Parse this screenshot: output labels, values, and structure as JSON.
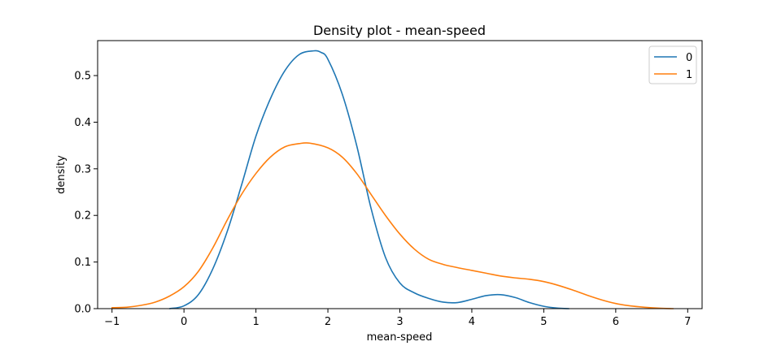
{
  "chart_data": {
    "type": "line",
    "title": "Density plot - mean-speed",
    "xlabel": "mean-speed",
    "ylabel": "density",
    "xlim": [
      -1.2,
      7.2
    ],
    "ylim": [
      0,
      0.575
    ],
    "xticks": [
      -1,
      0,
      1,
      2,
      3,
      4,
      5,
      6,
      7
    ],
    "xtick_labels": [
      "−1",
      "0",
      "1",
      "2",
      "3",
      "4",
      "5",
      "6",
      "7"
    ],
    "yticks": [
      0.0,
      0.1,
      0.2,
      0.3,
      0.4,
      0.5
    ],
    "ytick_labels": [
      "0.0",
      "0.1",
      "0.2",
      "0.3",
      "0.4",
      "0.5"
    ],
    "grid": false,
    "legend_position": "top-right",
    "series": [
      {
        "name": "0",
        "color": "#1f77b4",
        "x": [
          -0.2,
          0.0,
          0.2,
          0.4,
          0.6,
          0.8,
          1.0,
          1.2,
          1.4,
          1.6,
          1.8,
          1.9,
          2.0,
          2.2,
          2.4,
          2.6,
          2.8,
          3.0,
          3.2,
          3.4,
          3.6,
          3.8,
          4.0,
          4.2,
          4.4,
          4.6,
          4.8,
          5.0,
          5.2,
          5.35
        ],
        "y": [
          0.0,
          0.006,
          0.03,
          0.085,
          0.165,
          0.265,
          0.37,
          0.45,
          0.51,
          0.545,
          0.553,
          0.55,
          0.535,
          0.46,
          0.35,
          0.215,
          0.11,
          0.055,
          0.034,
          0.022,
          0.014,
          0.013,
          0.02,
          0.028,
          0.03,
          0.024,
          0.013,
          0.005,
          0.001,
          0.0
        ]
      },
      {
        "name": "1",
        "color": "#ff7f0e",
        "x": [
          -1.0,
          -0.8,
          -0.6,
          -0.4,
          -0.2,
          0.0,
          0.2,
          0.4,
          0.6,
          0.8,
          1.0,
          1.2,
          1.4,
          1.6,
          1.75,
          2.0,
          2.2,
          2.4,
          2.6,
          2.8,
          3.0,
          3.2,
          3.4,
          3.6,
          3.8,
          4.0,
          4.2,
          4.4,
          4.6,
          4.8,
          5.0,
          5.2,
          5.4,
          5.6,
          5.8,
          6.0,
          6.2,
          6.4,
          6.6,
          6.8
        ],
        "y": [
          0.002,
          0.003,
          0.007,
          0.014,
          0.027,
          0.047,
          0.08,
          0.13,
          0.19,
          0.245,
          0.29,
          0.325,
          0.347,
          0.354,
          0.355,
          0.345,
          0.325,
          0.29,
          0.245,
          0.2,
          0.16,
          0.128,
          0.106,
          0.095,
          0.088,
          0.082,
          0.076,
          0.07,
          0.066,
          0.063,
          0.058,
          0.05,
          0.04,
          0.029,
          0.019,
          0.011,
          0.006,
          0.003,
          0.001,
          0.0
        ]
      }
    ]
  }
}
